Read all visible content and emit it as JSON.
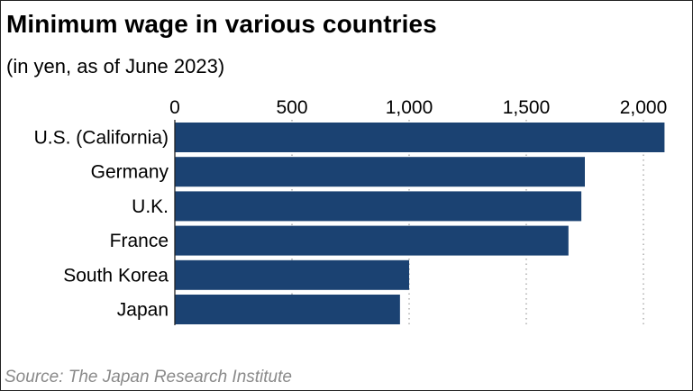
{
  "title": "Minimum wage in various countries",
  "subtitle": "(in yen, as of June 2023)",
  "source": "Source: The Japan Research Institute",
  "colors": {
    "bar": "#1b4272",
    "grid": "#999999",
    "axis": "#222222"
  },
  "chart_data": {
    "type": "bar",
    "orientation": "horizontal",
    "title": "Minimum wage in various countries",
    "subtitle": "(in yen, as of June 2023)",
    "categories": [
      "U.S. (California)",
      "Germany",
      "U.K.",
      "France",
      "South Korea",
      "Japan"
    ],
    "values": [
      2090,
      1750,
      1735,
      1680,
      1000,
      961
    ],
    "xlim": [
      0,
      2100
    ],
    "xticks": [
      0,
      500,
      1000,
      1500,
      2000
    ],
    "xtick_labels": [
      "0",
      "500",
      "1,000",
      "1,500",
      "2,000"
    ],
    "xlabel": "",
    "ylabel": "",
    "tick_position": "top",
    "grid": "vertical dotted",
    "legend": "none"
  }
}
